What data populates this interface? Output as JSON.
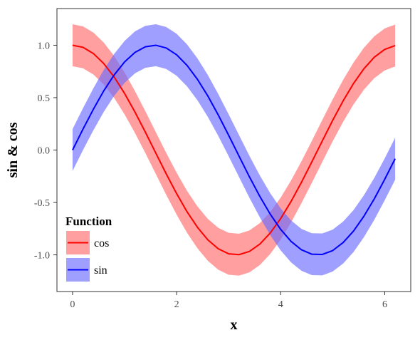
{
  "chart_data": {
    "type": "line",
    "title": "",
    "xlabel": "x",
    "ylabel": "sin & cos",
    "xlim": [
      -0.3,
      6.5
    ],
    "ylim": [
      -1.35,
      1.35
    ],
    "x_ticks": [
      0,
      2,
      4,
      6
    ],
    "x_tick_labels": [
      "0",
      "2",
      "4",
      "6"
    ],
    "y_ticks": [
      -1.0,
      -0.5,
      0.0,
      0.5,
      1.0
    ],
    "y_tick_labels": [
      "-1.0",
      "-0.5",
      "0.0",
      "0.5",
      "1.0"
    ],
    "grid": false,
    "legend": {
      "title": "Function",
      "placement": "bottom-left"
    },
    "ribbon_halfwidth": 0.2,
    "x": [
      0.0,
      0.2,
      0.4,
      0.6,
      0.8,
      1.0,
      1.2,
      1.4,
      1.6,
      1.8,
      2.0,
      2.2,
      2.4,
      2.6,
      2.8,
      3.0,
      3.2,
      3.4,
      3.6,
      3.8,
      4.0,
      4.2,
      4.4,
      4.6,
      4.8,
      5.0,
      5.2,
      5.4,
      5.6,
      5.8,
      6.0,
      6.2
    ],
    "series": [
      {
        "name": "cos",
        "color": "#ff0000",
        "ribbon_color": "#ff6b6b",
        "values": [
          1.0,
          0.98,
          0.921,
          0.825,
          0.697,
          0.54,
          0.362,
          0.17,
          -0.029,
          -0.227,
          -0.416,
          -0.589,
          -0.737,
          -0.857,
          -0.942,
          -0.99,
          -0.998,
          -0.967,
          -0.897,
          -0.791,
          -0.654,
          -0.49,
          -0.307,
          -0.112,
          0.087,
          0.284,
          0.469,
          0.635,
          0.776,
          0.886,
          0.96,
          0.997
        ]
      },
      {
        "name": "sin",
        "color": "#0000ff",
        "ribbon_color": "#6b6bff",
        "values": [
          0.0,
          0.199,
          0.389,
          0.565,
          0.717,
          0.841,
          0.932,
          0.985,
          1.0,
          0.974,
          0.909,
          0.808,
          0.675,
          0.516,
          0.335,
          0.141,
          -0.058,
          -0.256,
          -0.443,
          -0.612,
          -0.757,
          -0.872,
          -0.952,
          -0.994,
          -0.996,
          -0.959,
          -0.883,
          -0.773,
          -0.631,
          -0.465,
          -0.279,
          -0.083
        ]
      }
    ]
  }
}
